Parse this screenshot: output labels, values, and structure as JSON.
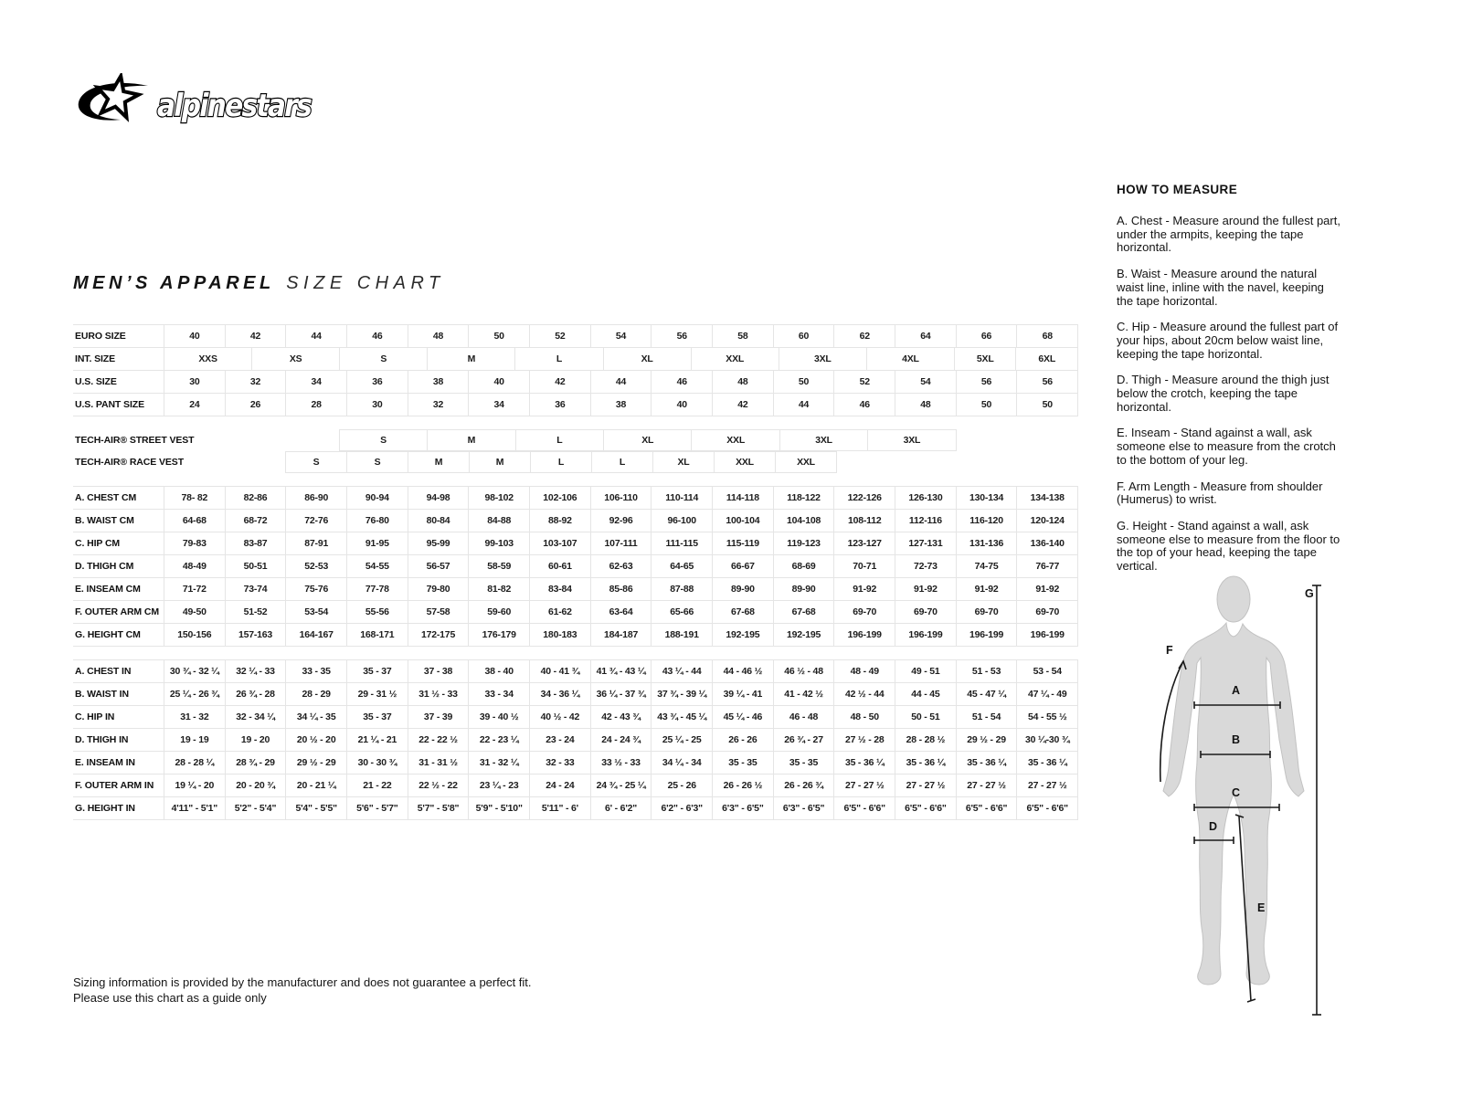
{
  "logo": {
    "text": "alpinestars"
  },
  "title": {
    "primary": "MEN’S APPAREL",
    "secondary": "SIZE CHART"
  },
  "size_table": {
    "rows": [
      {
        "label": "EURO SIZE",
        "group": "sizes",
        "first": true,
        "cells": [
          "40",
          "42",
          "44",
          "46",
          "48",
          "50",
          "52",
          "54",
          "56",
          "58",
          "60",
          "62",
          "64",
          "66",
          "68"
        ]
      },
      {
        "label": "INT. SIZE",
        "group": "sizes",
        "cells": [
          "XXS",
          "XS",
          "S",
          "M",
          "L",
          "XL",
          "XXL",
          "3XL",
          "4XL",
          "5XL",
          "6XL"
        ],
        "spans": [
          1.444,
          1.444,
          1.444,
          1.444,
          1.444,
          1.444,
          1.444,
          1.444,
          1.444,
          1,
          1
        ]
      },
      {
        "label": "U.S. SIZE",
        "group": "sizes",
        "cells": [
          "30",
          "32",
          "34",
          "36",
          "38",
          "40",
          "42",
          "44",
          "46",
          "48",
          "50",
          "52",
          "54",
          "56",
          "56"
        ]
      },
      {
        "label": "U.S. PANT SIZE",
        "group": "sizes",
        "cells": [
          "24",
          "26",
          "28",
          "30",
          "32",
          "34",
          "36",
          "38",
          "40",
          "42",
          "44",
          "46",
          "48",
          "50",
          "50"
        ]
      },
      {
        "label": "TECH-AIR® STREET VEST",
        "group": "vest",
        "gap": true,
        "cells": [
          "",
          "",
          "S",
          "M",
          "L",
          "XL",
          "XXL",
          "3XL",
          "3XL",
          "",
          ""
        ],
        "spans": [
          1.444,
          1.444,
          1.444,
          1.444,
          1.444,
          1.444,
          1.444,
          1.444,
          1.444,
          1,
          1
        ]
      },
      {
        "label": "TECH-AIR® RACE VEST",
        "group": "vest",
        "cells": [
          "",
          "",
          "S",
          "S",
          "M",
          "M",
          "L",
          "L",
          "XL",
          "XXL",
          "XXL",
          "",
          "",
          "",
          ""
        ]
      },
      {
        "label": "A. CHEST CM",
        "group": "cm",
        "first": true,
        "gap": true,
        "cells": [
          "78- 82",
          "82-86",
          "86-90",
          "90-94",
          "94-98",
          "98-102",
          "102-106",
          "106-110",
          "110-114",
          "114-118",
          "118-122",
          "122-126",
          "126-130",
          "130-134",
          "134-138"
        ]
      },
      {
        "label": "B. WAIST CM",
        "group": "cm",
        "cells": [
          "64-68",
          "68-72",
          "72-76",
          "76-80",
          "80-84",
          "84-88",
          "88-92",
          "92-96",
          "96-100",
          "100-104",
          "104-108",
          "108-112",
          "112-116",
          "116-120",
          "120-124"
        ]
      },
      {
        "label": "C. HIP CM",
        "group": "cm",
        "cells": [
          "79-83",
          "83-87",
          "87-91",
          "91-95",
          "95-99",
          "99-103",
          "103-107",
          "107-111",
          "111-115",
          "115-119",
          "119-123",
          "123-127",
          "127-131",
          "131-136",
          "136-140"
        ]
      },
      {
        "label": "D. THIGH CM",
        "group": "cm",
        "cells": [
          "48-49",
          "50-51",
          "52-53",
          "54-55",
          "56-57",
          "58-59",
          "60-61",
          "62-63",
          "64-65",
          "66-67",
          "68-69",
          "70-71",
          "72-73",
          "74-75",
          "76-77"
        ]
      },
      {
        "label": "E. INSEAM CM",
        "group": "cm",
        "cells": [
          "71-72",
          "73-74",
          "75-76",
          "77-78",
          "79-80",
          "81-82",
          "83-84",
          "85-86",
          "87-88",
          "89-90",
          "89-90",
          "91-92",
          "91-92",
          "91-92",
          "91-92"
        ]
      },
      {
        "label": "F. OUTER ARM CM",
        "group": "cm",
        "cells": [
          "49-50",
          "51-52",
          "53-54",
          "55-56",
          "57-58",
          "59-60",
          "61-62",
          "63-64",
          "65-66",
          "67-68",
          "67-68",
          "69-70",
          "69-70",
          "69-70",
          "69-70"
        ]
      },
      {
        "label": "G. HEIGHT CM",
        "group": "cm",
        "cells": [
          "150-156",
          "157-163",
          "164-167",
          "168-171",
          "172-175",
          "176-179",
          "180-183",
          "184-187",
          "188-191",
          "192-195",
          "192-195",
          "196-199",
          "196-199",
          "196-199",
          "196-199"
        ]
      },
      {
        "label": "A. CHEST IN",
        "group": "in",
        "first": true,
        "gap": true,
        "cells": [
          "30 ¾ - 32 ¼",
          "32 ¼ - 33",
          "33  - 35",
          "35  - 37",
          "37 - 38",
          "38  - 40",
          "40  - 41 ¾",
          "41 ¾ - 43 ¼",
          "43 ¼ - 44",
          "44  - 46 ½",
          "46 ½ - 48",
          "48 - 49",
          "49  - 51",
          "51 - 53",
          "53  - 54"
        ]
      },
      {
        "label": "B. WAIST IN",
        "group": "in",
        "cells": [
          "25 ¼ - 26 ¾",
          "26 ¾ - 28",
          "28  - 29",
          "29  - 31 ½",
          "31 ½ - 33",
          "33  - 34",
          "34  - 36 ¼",
          "36 ¼ - 37 ¾",
          "37 ¾ - 39 ¼",
          "39 ¼ - 41",
          "41 - 42 ½",
          "42 ½ - 44",
          "44  - 45",
          "45  - 47 ¼",
          "47 ¼ - 49"
        ]
      },
      {
        "label": "C. HIP IN",
        "group": "in",
        "cells": [
          "31  - 32",
          "32  - 34 ¼",
          "34 ¼ - 35",
          "35  - 37",
          "37  - 39",
          "39 - 40 ½",
          "40 ½ - 42",
          "42  - 43 ¾",
          "43 ¾ - 45 ¼",
          "45 ¼ - 46",
          "46  - 48",
          "48  - 50",
          "50 - 51",
          "51  - 54",
          "54  - 55 ½"
        ]
      },
      {
        "label": "D. THIGH IN",
        "group": "in",
        "cells": [
          "19  - 19",
          "19  - 20",
          "20 ½ - 20",
          "21 ¼ - 21",
          "22 - 22 ½",
          "22  - 23 ¼",
          "23  - 24",
          "24  - 24 ¾",
          "25 ¼ - 25",
          "26 - 26",
          "26 ¾ - 27",
          "27 ½ - 28",
          "28  - 28 ½",
          "29 ½ - 29",
          "30 ¼-30 ¾"
        ]
      },
      {
        "label": "E. INSEAM IN",
        "group": "in",
        "cells": [
          "28 - 28 ¼",
          "28 ¾ - 29",
          "29 ½ - 29",
          "30  - 30 ¾",
          "31  - 31 ½",
          "31  - 32 ¼",
          "32  - 33",
          "33 ½ - 33",
          "34 ¼ - 34",
          "35 - 35",
          "35 - 35",
          "35  - 36 ¼",
          "35  - 36 ¼",
          "35  - 36 ¼",
          "35  - 36 ¼"
        ]
      },
      {
        "label": "F. OUTER ARM IN",
        "group": "in",
        "cells": [
          "19 ¼ - 20",
          "20  - 20 ¾",
          "20  - 21 ¼",
          "21  - 22",
          "22 ½ - 22",
          "23 ¼ - 23",
          "24 - 24",
          "24 ¾ - 25 ¼",
          "25  - 26",
          "26  - 26 ½",
          "26  - 26 ¾",
          "27  - 27 ½",
          "27  - 27 ½",
          "27  - 27 ½",
          "27  - 27 ½"
        ]
      },
      {
        "label": "G. HEIGHT IN",
        "group": "in",
        "cells": [
          "4'11\" - 5'1\"",
          "5'2\" - 5'4\"",
          "5'4\" - 5'5\"",
          "5'6\" - 5'7\"",
          "5'7\" - 5'8\"",
          "5'9\" - 5'10\"",
          "5'11\" - 6'",
          "6' - 6'2\"",
          "6'2\" - 6'3\"",
          "6'3\" - 6'5\"",
          "6'3\" - 6'5\"",
          "6'5\" - 6'6\"",
          "6'5\" - 6'6\"",
          "6'5\" - 6'6\"",
          "6'5\" - 6'6\""
        ]
      }
    ]
  },
  "how_to_measure": {
    "title": "HOW TO MEASURE",
    "items": [
      "A. Chest - Measure around the fullest part, under the armpits, keeping the tape horizontal.",
      "B. Waist - Measure around the natural waist line, inline with the navel, keeping the tape horizontal.",
      "C. Hip - Measure around the fullest part of your hips, about 20cm below waist line, keeping the tape horizontal.",
      "D. Thigh - Measure around the thigh just below the crotch, keeping the tape horizontal.",
      "E. Inseam - Stand against a wall, ask someone else to measure from the crotch to the bottom of your leg.",
      "F. Arm Length - Measure from shoulder (Humerus) to wrist.",
      "G. Height - Stand against a wall, ask someone else to measure from the floor to the top of your head, keeping the tape vertical."
    ]
  },
  "figure": {
    "labels": [
      "A",
      "B",
      "C",
      "D",
      "E",
      "F",
      "G"
    ]
  },
  "footer": {
    "line1": "Sizing information is provided by the manufacturer and does not guarantee a perfect fit.",
    "line2": "Please use this chart as a guide only"
  },
  "colors": {
    "text": "#111111",
    "grid": "#e5e5e5",
    "figure_fill": "#d9d9d9",
    "accent": "#000000"
  }
}
